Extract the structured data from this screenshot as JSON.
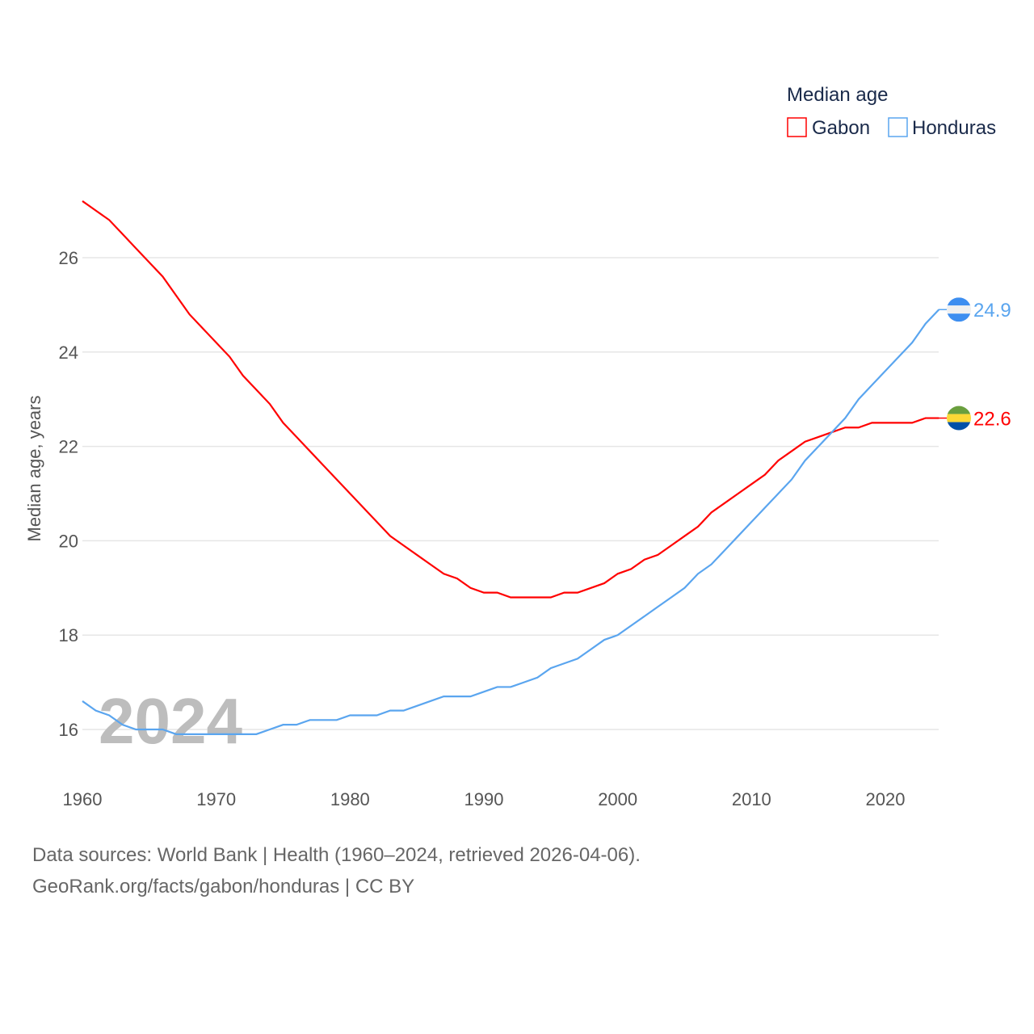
{
  "chart_data": {
    "type": "line",
    "legend_title": "Median age",
    "ylabel": "Median age, years",
    "ylim": [
      15,
      27.5
    ],
    "xlim": [
      1960,
      2024
    ],
    "yticks": [
      16,
      18,
      20,
      22,
      24,
      26
    ],
    "xticks": [
      1960,
      1970,
      1980,
      1990,
      2000,
      2010,
      2020
    ],
    "year_watermark": "2024",
    "legend_position": "top-right",
    "x_start": 1960,
    "series": [
      {
        "name": "Gabon",
        "color": "#ff0000",
        "end_label": "22.6",
        "flag": "gabon-flag",
        "values": [
          27.2,
          27.0,
          26.8,
          26.5,
          26.2,
          25.9,
          25.6,
          25.2,
          24.8,
          24.5,
          24.2,
          23.9,
          23.5,
          23.2,
          22.9,
          22.5,
          22.2,
          21.9,
          21.6,
          21.3,
          21.0,
          20.7,
          20.4,
          20.1,
          19.9,
          19.7,
          19.5,
          19.3,
          19.2,
          19.0,
          18.9,
          18.9,
          18.8,
          18.8,
          18.8,
          18.8,
          18.9,
          18.9,
          19.0,
          19.1,
          19.3,
          19.4,
          19.6,
          19.7,
          19.9,
          20.1,
          20.3,
          20.6,
          20.8,
          21.0,
          21.2,
          21.4,
          21.7,
          21.9,
          22.1,
          22.2,
          22.3,
          22.4,
          22.4,
          22.5,
          22.5,
          22.5,
          22.5,
          22.6,
          22.6
        ]
      },
      {
        "name": "Honduras",
        "color": "#5aa5ef",
        "end_label": "24.9",
        "flag": "honduras-flag",
        "values": [
          16.6,
          16.4,
          16.3,
          16.1,
          16.0,
          16.0,
          16.0,
          15.9,
          15.9,
          15.9,
          15.9,
          15.9,
          15.9,
          15.9,
          16.0,
          16.1,
          16.1,
          16.2,
          16.2,
          16.2,
          16.3,
          16.3,
          16.3,
          16.4,
          16.4,
          16.5,
          16.6,
          16.7,
          16.7,
          16.7,
          16.8,
          16.9,
          16.9,
          17.0,
          17.1,
          17.3,
          17.4,
          17.5,
          17.7,
          17.9,
          18.0,
          18.2,
          18.4,
          18.6,
          18.8,
          19.0,
          19.3,
          19.5,
          19.8,
          20.1,
          20.4,
          20.7,
          21.0,
          21.3,
          21.7,
          22.0,
          22.3,
          22.6,
          23.0,
          23.3,
          23.6,
          23.9,
          24.2,
          24.6,
          24.9
        ]
      }
    ]
  },
  "footer": {
    "line1": "Data sources: World Bank | Health (1960–2024, retrieved 2026-04-06).",
    "line2": "GeoRank.org/facts/gabon/honduras | CC BY"
  }
}
